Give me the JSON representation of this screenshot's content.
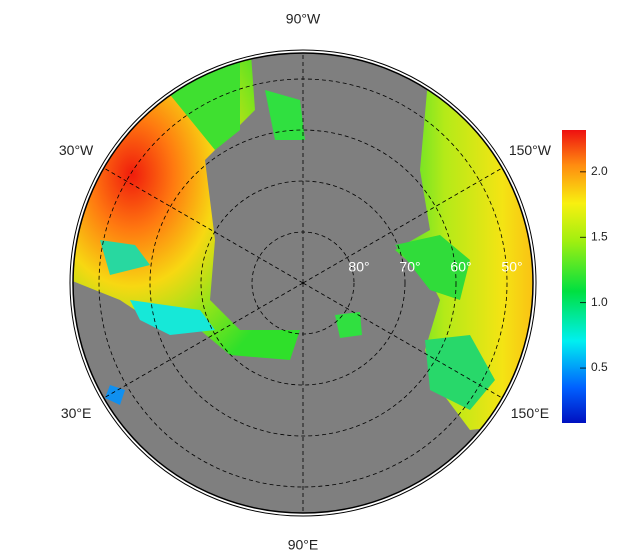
{
  "map": {
    "longitude_labels": [
      {
        "value": -90,
        "label": "90°W"
      },
      {
        "value": -30,
        "label": "30°W"
      },
      {
        "value": -150,
        "label": "150°W"
      },
      {
        "value": 30,
        "label": "30°E"
      },
      {
        "value": 150,
        "label": "150°E"
      },
      {
        "value": 90,
        "label": "90°E"
      }
    ],
    "latitude_labels": [
      {
        "value": 80,
        "label": "80°"
      },
      {
        "value": 70,
        "label": "70°"
      },
      {
        "value": 60,
        "label": "60°"
      },
      {
        "value": 50,
        "label": "50°"
      }
    ],
    "colorbar": {
      "range": [
        0.08,
        2.32
      ],
      "ticks": [
        0.5,
        {
          "value": 1,
          "label": "1.0"
        },
        1.5,
        {
          "value": 2,
          "label": "2.0"
        }
      ]
    }
  }
}
